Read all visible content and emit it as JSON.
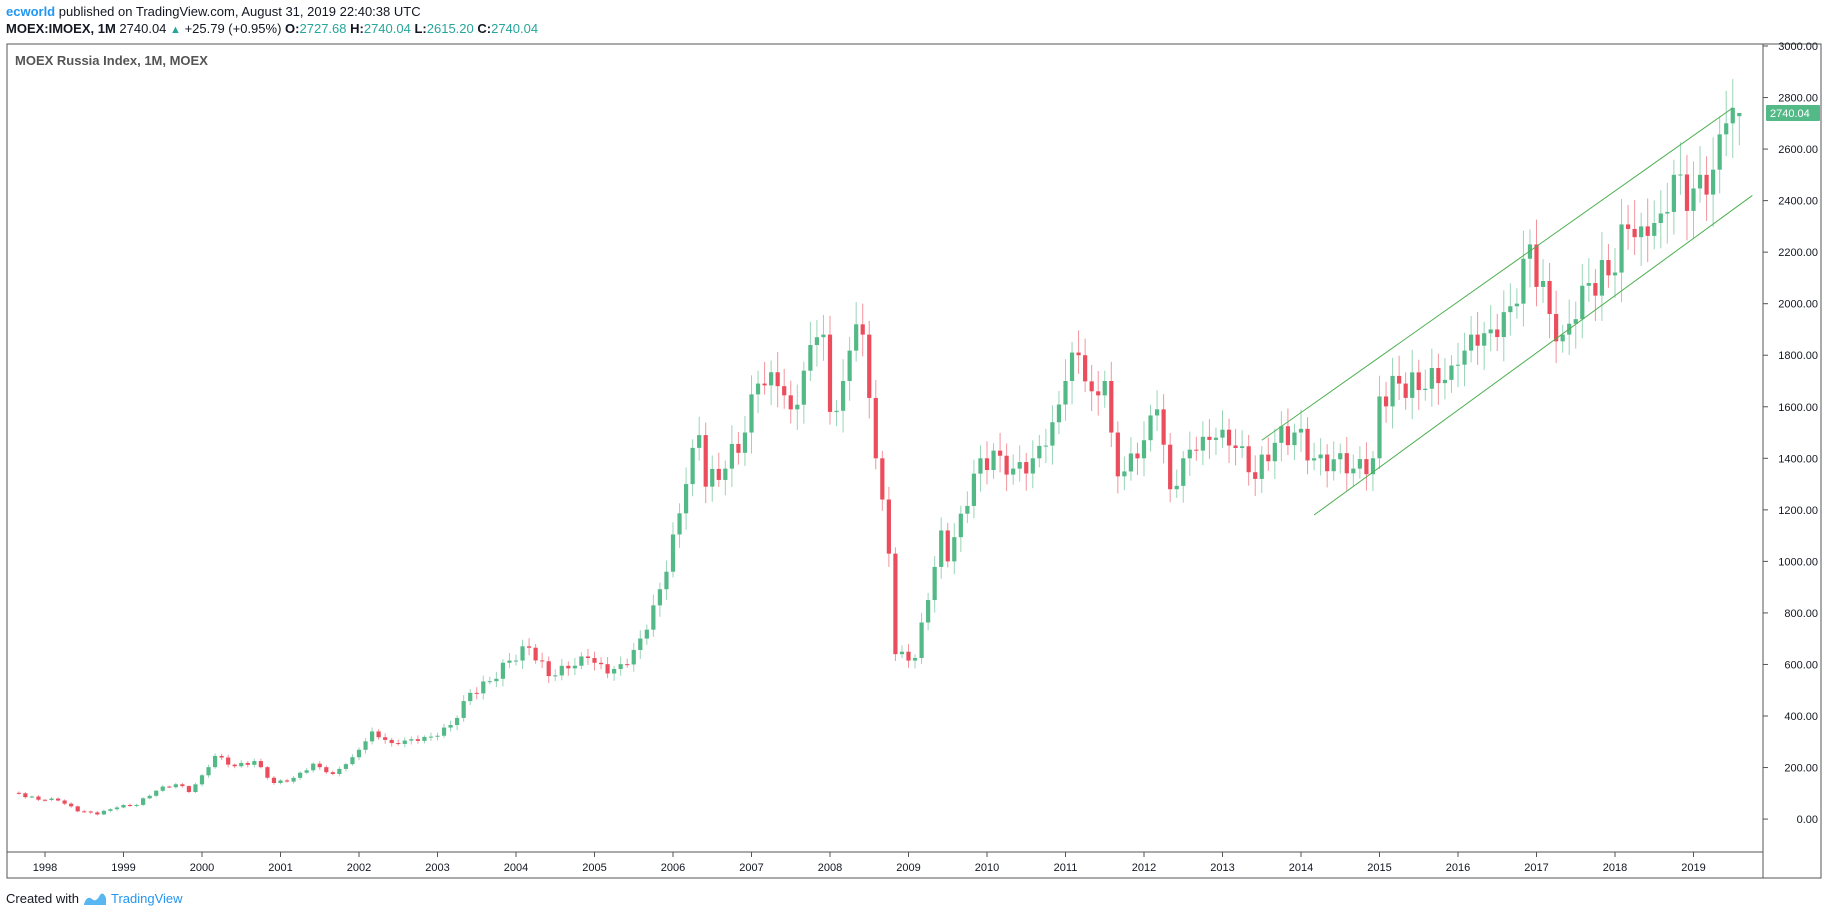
{
  "header": {
    "author": "ecworld",
    "published_text": "published on TradingView.com, August 31, 2019 22:40:38 UTC",
    "symbol": "MOEX:IMOEX, 1M",
    "last": "2740.04",
    "change_arrow": "▲",
    "change": "+25.79 (+0.95%)",
    "o_label": "O:",
    "o_value": "2727.68",
    "h_label": "H:",
    "h_value": "2740.04",
    "l_label": "L:",
    "l_value": "2615.20",
    "c_label": "C:",
    "c_value": "2740.04"
  },
  "legend_title": "MOEX Russia Index, 1M, MOEX",
  "price_tag": "2740.04",
  "footer": {
    "created_with": "Created with",
    "brand": "TradingView"
  },
  "colors": {
    "up": "#53b987",
    "down": "#eb4d5c",
    "channel": "#4caf50",
    "tag": "#53b987",
    "grid": "#e0e3eb",
    "text": "#131722"
  },
  "chart_data": {
    "type": "candlestick",
    "title": "MOEX Russia Index, 1M, MOEX",
    "ylim": [
      -120,
      3000
    ],
    "y_ticks": [
      "3000.00",
      "2800.00",
      "2600.00",
      "2400.00",
      "2200.00",
      "2000.00",
      "1800.00",
      "1600.00",
      "1400.00",
      "1200.00",
      "1000.00",
      "800.00",
      "600.00",
      "400.00",
      "200.00",
      "0.00"
    ],
    "x_ticks": [
      "1998",
      "1999",
      "2000",
      "2001",
      "2002",
      "2003",
      "2004",
      "2005",
      "2006",
      "2007",
      "2008",
      "2009",
      "2010",
      "2011",
      "2012",
      "2013",
      "2014",
      "2015",
      "2016",
      "2017",
      "2018",
      "2019"
    ],
    "series": [
      {
        "name": "",
        "anchors": [
          [
            "1997-09",
            100
          ],
          [
            "1997-10",
            85
          ],
          [
            "1997-12",
            75
          ],
          [
            "1998-03",
            72
          ],
          [
            "1998-06",
            30
          ],
          [
            "1998-09",
            18
          ],
          [
            "1998-12",
            45
          ],
          [
            "1999-03",
            55
          ],
          [
            "1999-06",
            110
          ],
          [
            "1999-09",
            135
          ],
          [
            "1999-11",
            105
          ],
          [
            "2000-01",
            170
          ],
          [
            "2000-03",
            245
          ],
          [
            "2000-06",
            205
          ],
          [
            "2000-09",
            225
          ],
          [
            "2000-12",
            140
          ],
          [
            "2001-03",
            160
          ],
          [
            "2001-06",
            215
          ],
          [
            "2001-09",
            175
          ],
          [
            "2001-12",
            240
          ],
          [
            "2002-03",
            340
          ],
          [
            "2002-06",
            295
          ],
          [
            "2002-09",
            310
          ],
          [
            "2002-12",
            320
          ],
          [
            "2003-03",
            365
          ],
          [
            "2003-06",
            490
          ],
          [
            "2003-09",
            535
          ],
          [
            "2003-12",
            615
          ],
          [
            "2004-03",
            665
          ],
          [
            "2004-06",
            555
          ],
          [
            "2004-09",
            585
          ],
          [
            "2004-12",
            625
          ],
          [
            "2005-03",
            565
          ],
          [
            "2005-06",
            600
          ],
          [
            "2005-09",
            735
          ],
          [
            "2005-12",
            960
          ],
          [
            "2006-03",
            1300
          ],
          [
            "2006-05",
            1490
          ],
          [
            "2006-06",
            1290
          ],
          [
            "2006-09",
            1360
          ],
          [
            "2006-12",
            1500
          ],
          [
            "2007-02",
            1690
          ],
          [
            "2007-05",
            1680
          ],
          [
            "2007-07",
            1590
          ],
          [
            "2007-09",
            1740
          ],
          [
            "2007-11",
            1870
          ],
          [
            "2007-12",
            1880
          ],
          [
            "2008-01",
            1580
          ],
          [
            "2008-03",
            1700
          ],
          [
            "2008-05",
            1920
          ],
          [
            "2008-06",
            1880
          ],
          [
            "2008-08",
            1400
          ],
          [
            "2008-09",
            1240
          ],
          [
            "2008-10",
            1030
          ],
          [
            "2008-11",
            640
          ],
          [
            "2009-01",
            615
          ],
          [
            "2009-02",
            625
          ],
          [
            "2009-04",
            850
          ],
          [
            "2009-06",
            1120
          ],
          [
            "2009-07",
            1000
          ],
          [
            "2009-09",
            1185
          ],
          [
            "2009-12",
            1400
          ],
          [
            "2010-03",
            1410
          ],
          [
            "2010-05",
            1360
          ],
          [
            "2010-08",
            1400
          ],
          [
            "2010-11",
            1540
          ],
          [
            "2011-01",
            1700
          ],
          [
            "2011-03",
            1800
          ],
          [
            "2011-05",
            1660
          ],
          [
            "2011-07",
            1700
          ],
          [
            "2011-08",
            1500
          ],
          [
            "2011-09",
            1330
          ],
          [
            "2011-12",
            1400
          ],
          [
            "2012-03",
            1590
          ],
          [
            "2012-05",
            1280
          ],
          [
            "2012-07",
            1400
          ],
          [
            "2012-09",
            1430
          ],
          [
            "2012-12",
            1480
          ],
          [
            "2013-03",
            1440
          ],
          [
            "2013-06",
            1320
          ],
          [
            "2013-09",
            1460
          ],
          [
            "2013-12",
            1500
          ],
          [
            "2014-03",
            1400
          ],
          [
            "2014-05",
            1350
          ],
          [
            "2014-07",
            1420
          ],
          [
            "2014-09",
            1360
          ],
          [
            "2014-12",
            1400
          ],
          [
            "2015-01",
            1640
          ],
          [
            "2015-04",
            1690
          ],
          [
            "2015-08",
            1670
          ],
          [
            "2015-12",
            1760
          ],
          [
            "2016-03",
            1880
          ],
          [
            "2016-06",
            1900
          ],
          [
            "2016-09",
            1990
          ],
          [
            "2016-12",
            2230
          ],
          [
            "2017-03",
            1960
          ],
          [
            "2017-05",
            1880
          ],
          [
            "2017-07",
            1940
          ],
          [
            "2017-09",
            2080
          ],
          [
            "2017-12",
            2110
          ],
          [
            "2018-03",
            2290
          ],
          [
            "2018-05",
            2300
          ],
          [
            "2018-08",
            2350
          ],
          [
            "2018-10",
            2500
          ],
          [
            "2018-12",
            2360
          ],
          [
            "2019-02",
            2500
          ],
          [
            "2019-04",
            2520
          ],
          [
            "2019-06",
            2700
          ],
          [
            "2019-07",
            2760
          ],
          [
            "2019-08",
            2740.04
          ]
        ]
      }
    ],
    "last_candle": {
      "date": "2019-08",
      "open": 2727.68,
      "high": 2740.04,
      "low": 2615.2,
      "close": 2740.04
    },
    "channel": [
      {
        "name": "",
        "from": [
          "2013-07",
          1470
        ],
        "to": [
          "2019-07",
          2760
        ]
      },
      {
        "name": "",
        "from": [
          "2014-03",
          1180
        ],
        "to": [
          "2019-10",
          2420
        ]
      }
    ],
    "grid": false,
    "legend": "top-left"
  }
}
